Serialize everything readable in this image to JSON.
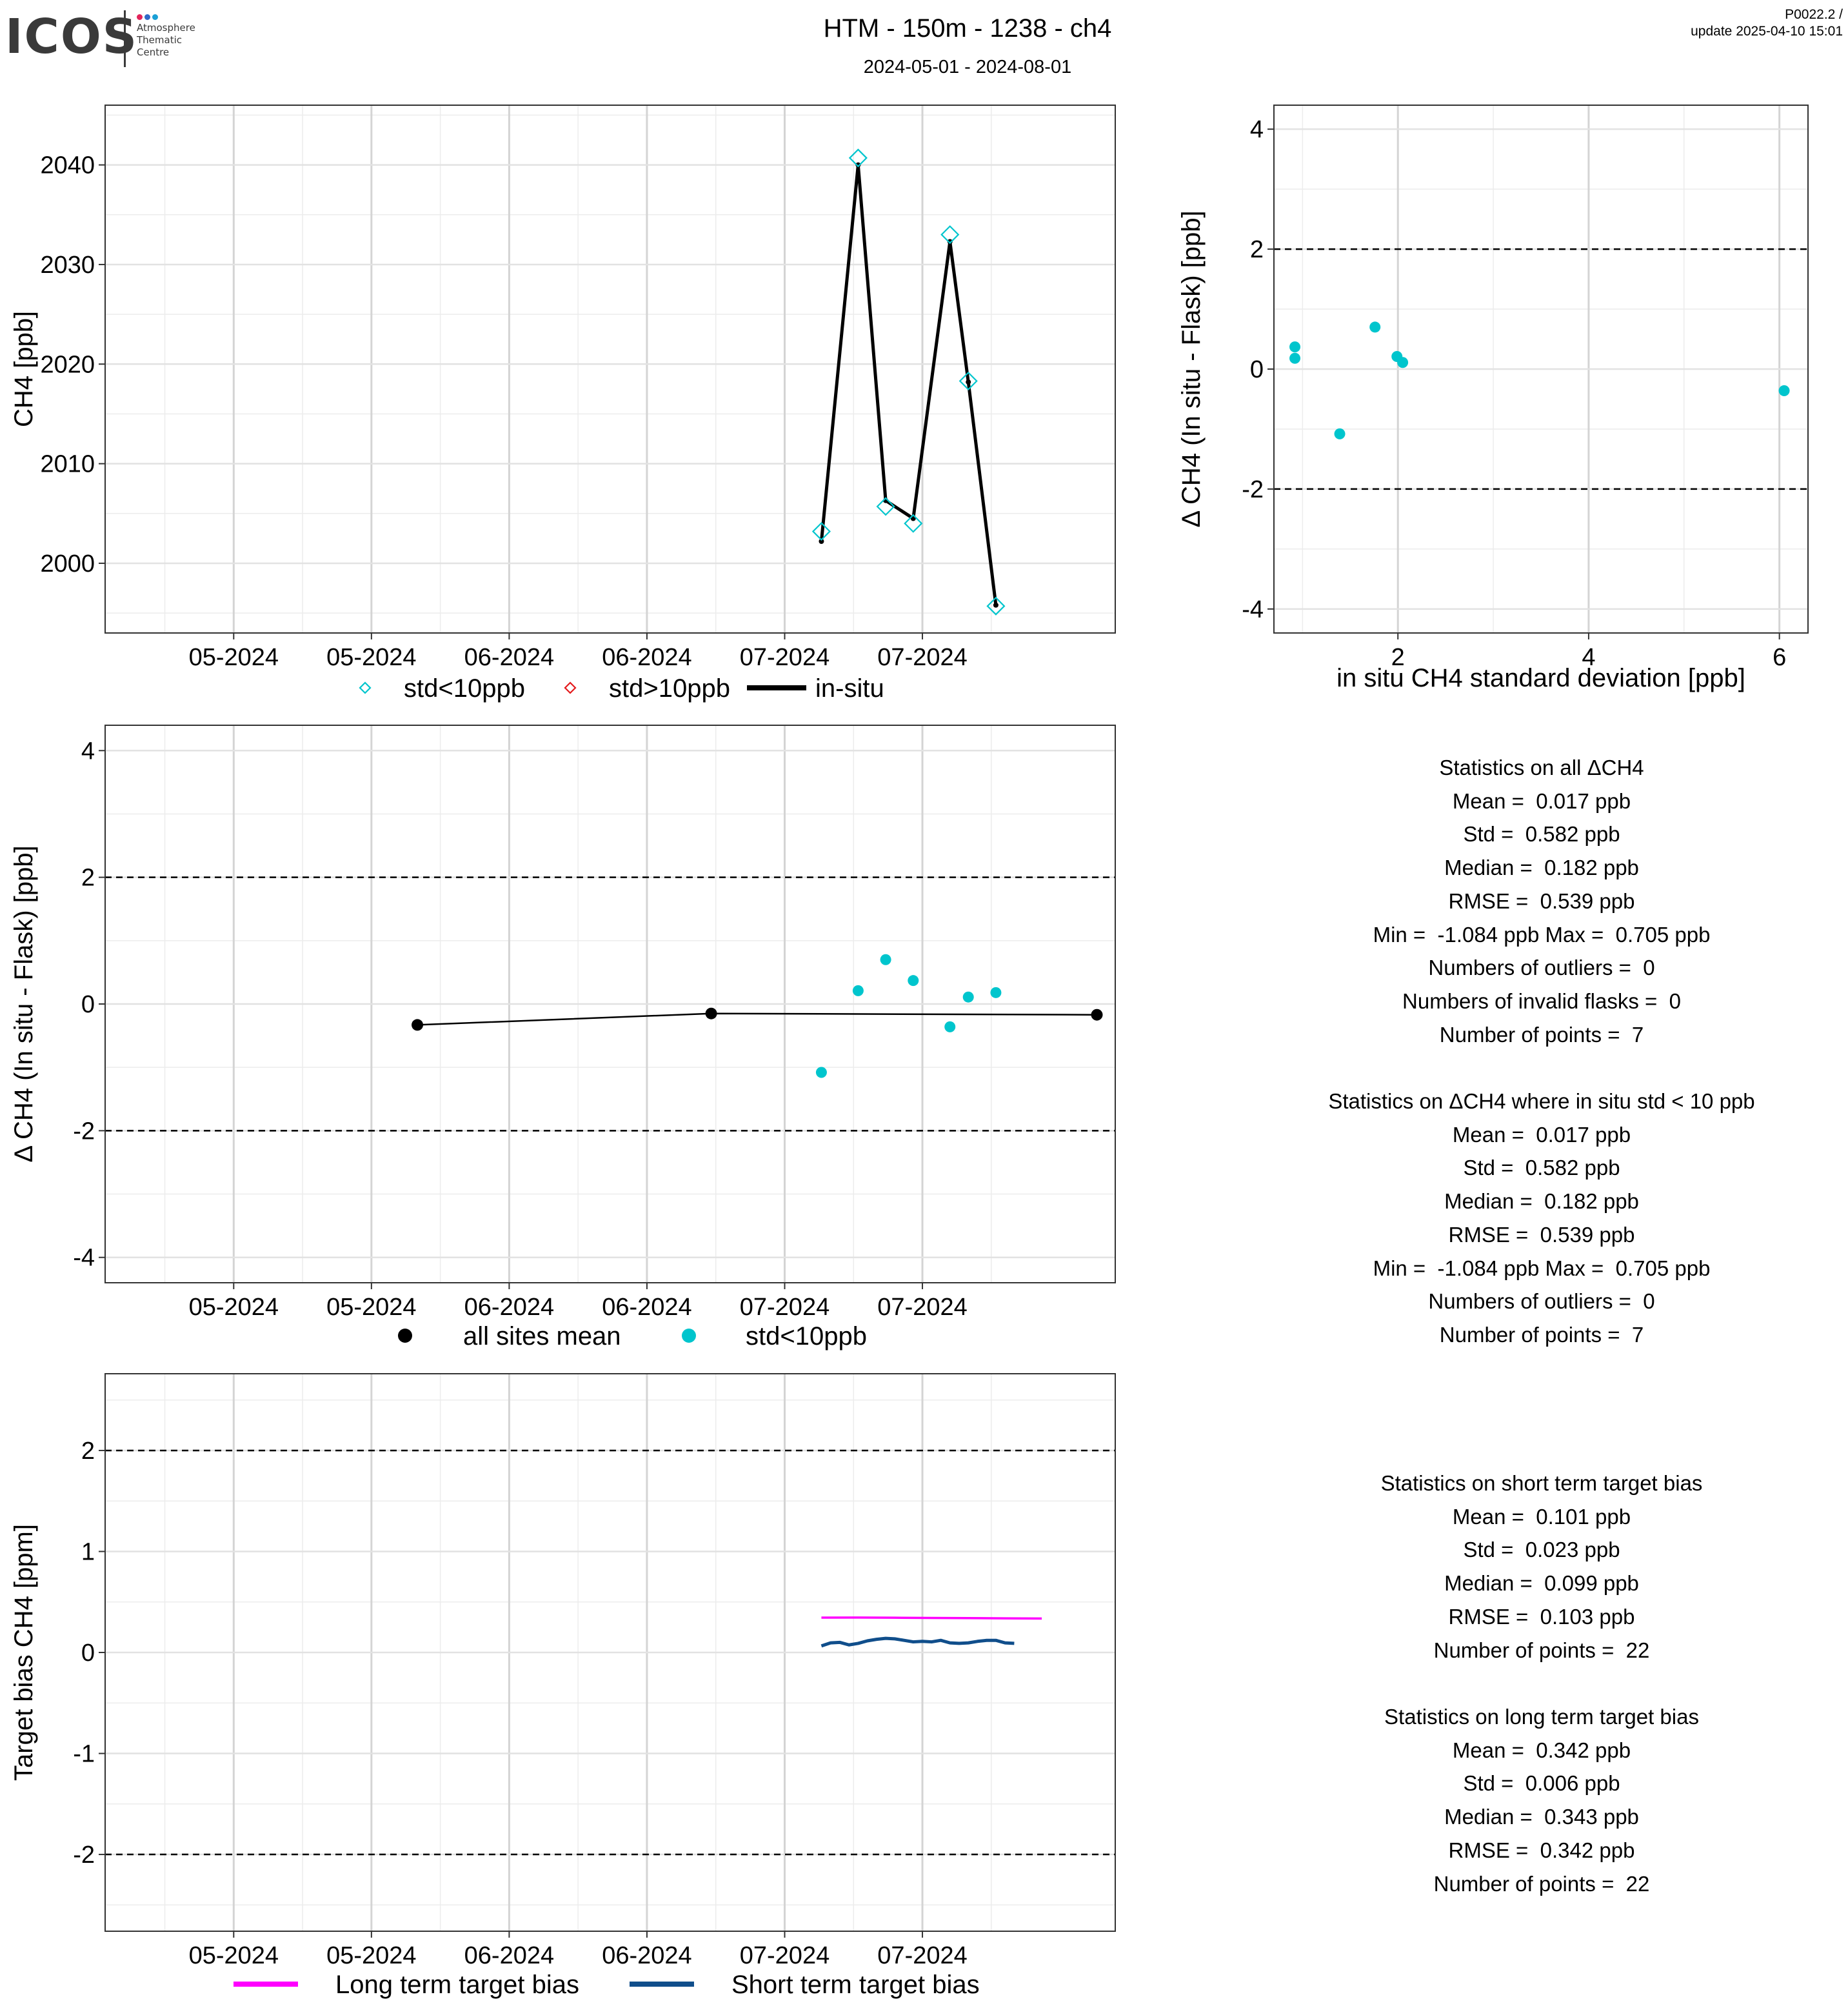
{
  "header": {
    "logo_word": "ICOS",
    "logo_sub": "Atmosphere\nThematic\nCentre",
    "logo_dot_colors": [
      "#e3245a",
      "#2f6ac7",
      "#1aa0d6"
    ],
    "title": "HTM - 150m - 1238 - ch4",
    "subtitle": "2024-05-01 - 2024-08-01",
    "version": "P0022.2 /",
    "update": "update  2025-04-10 15:01"
  },
  "chart_data": [
    {
      "id": "ts",
      "type": "line",
      "x_kind": "date",
      "xlim": [
        "2024-04-17",
        "2024-08-05"
      ],
      "x_ticks": [
        "2024-05-01",
        "2024-05-16",
        "2024-05-31",
        "2024-06-15",
        "2024-06-30",
        "2024-07-15"
      ],
      "x_tick_labels": [
        "05-2024",
        "05-2024",
        "06-2024",
        "06-2024",
        "07-2024",
        "07-2024"
      ],
      "ylabel": "CH4 [ppb]",
      "ylim": [
        1993,
        2046
      ],
      "y_ticks": [
        2000,
        2010,
        2020,
        2030,
        2040
      ],
      "grid": true,
      "legend_position": "bottom",
      "series": [
        {
          "name": "std<10ppb",
          "kind": "diamond-open",
          "color": "#00c5cd",
          "x": [
            "2024-07-04",
            "2024-07-08",
            "2024-07-11",
            "2024-07-14",
            "2024-07-18",
            "2024-07-20",
            "2024-07-23"
          ],
          "y": [
            2003.2,
            2040.7,
            2005.7,
            2004.0,
            2033.0,
            2018.3,
            1995.7
          ]
        },
        {
          "name": "std>10ppb",
          "kind": "diamond-open",
          "color": "#e41a1c",
          "x": [],
          "y": []
        },
        {
          "name": "in-situ",
          "kind": "line",
          "color": "#000000",
          "x": [
            "2024-07-04",
            "2024-07-08",
            "2024-07-11",
            "2024-07-14",
            "2024-07-18",
            "2024-07-20",
            "2024-07-23"
          ],
          "y": [
            2002.2,
            2040.0,
            2006.3,
            2004.5,
            2032.3,
            2018.2,
            1995.8
          ]
        }
      ]
    },
    {
      "id": "scatter",
      "type": "scatter",
      "xlabel": "in situ CH4 standard deviation [ppb]",
      "ylabel": "Δ CH4 (In situ - Flask) [ppb]",
      "xlim": [
        0.7,
        6.3
      ],
      "ylim": [
        -4.4,
        4.4
      ],
      "x_ticks": [
        2,
        4,
        6
      ],
      "y_ticks": [
        -4,
        -2,
        0,
        2,
        4
      ],
      "hlines": [
        -2,
        2
      ],
      "grid": true,
      "series": [
        {
          "name": "std<10ppb",
          "color": "#00c5cd",
          "x": [
            0.92,
            0.92,
            1.39,
            1.76,
            1.99,
            2.05,
            6.05
          ],
          "y": [
            0.37,
            0.18,
            -1.08,
            0.7,
            0.21,
            0.11,
            -0.36
          ]
        }
      ]
    },
    {
      "id": "diff",
      "type": "scatter",
      "x_kind": "date",
      "xlim": [
        "2024-04-17",
        "2024-08-05"
      ],
      "x_ticks": [
        "2024-05-01",
        "2024-05-16",
        "2024-05-31",
        "2024-06-15",
        "2024-06-30",
        "2024-07-15"
      ],
      "x_tick_labels": [
        "05-2024",
        "05-2024",
        "06-2024",
        "06-2024",
        "07-2024",
        "07-2024"
      ],
      "ylabel": "Δ CH4 (In situ - Flask) [ppb]",
      "ylim": [
        -4.4,
        4.4
      ],
      "y_ticks": [
        -4,
        -2,
        0,
        2,
        4
      ],
      "hlines": [
        -2,
        2
      ],
      "grid": true,
      "legend_position": "bottom",
      "series": [
        {
          "name": "all sites mean",
          "kind": "line-points",
          "color": "#000000",
          "x": [
            "2024-05-21",
            "2024-06-22",
            "2024-08-03"
          ],
          "y": [
            -0.33,
            -0.15,
            -0.17
          ]
        },
        {
          "name": "std<10ppb",
          "kind": "points",
          "color": "#00c5cd",
          "x": [
            "2024-07-04",
            "2024-07-08",
            "2024-07-11",
            "2024-07-14",
            "2024-07-18",
            "2024-07-20",
            "2024-07-23"
          ],
          "y": [
            -1.08,
            0.21,
            0.7,
            0.37,
            -0.36,
            0.11,
            0.18
          ]
        }
      ]
    },
    {
      "id": "bias",
      "type": "line",
      "x_kind": "date",
      "xlim": [
        "2024-04-17",
        "2024-08-05"
      ],
      "x_ticks": [
        "2024-05-01",
        "2024-05-16",
        "2024-05-31",
        "2024-06-15",
        "2024-06-30",
        "2024-07-15"
      ],
      "x_tick_labels": [
        "05-2024",
        "05-2024",
        "06-2024",
        "06-2024",
        "07-2024",
        "07-2024"
      ],
      "ylabel": "Target bias CH4 [ppm]",
      "ylim": [
        -2.76,
        2.76
      ],
      "y_ticks": [
        -2,
        -1,
        0,
        1,
        2
      ],
      "hlines": [
        -2,
        2
      ],
      "grid": true,
      "legend_position": "bottom",
      "series": [
        {
          "name": "Long term target bias",
          "color": "#ff00ff",
          "x": [
            "2024-07-04",
            "2024-07-08",
            "2024-07-12",
            "2024-07-16",
            "2024-07-20",
            "2024-07-24",
            "2024-07-28"
          ],
          "y": [
            0.345,
            0.346,
            0.344,
            0.342,
            0.34,
            0.338,
            0.336
          ]
        },
        {
          "name": "Short term target bias",
          "color": "#104e8b",
          "x": [
            "2024-07-04",
            "2024-07-05",
            "2024-07-06",
            "2024-07-07",
            "2024-07-08",
            "2024-07-09",
            "2024-07-10",
            "2024-07-11",
            "2024-07-12",
            "2024-07-13",
            "2024-07-14",
            "2024-07-15",
            "2024-07-16",
            "2024-07-17",
            "2024-07-18",
            "2024-07-19",
            "2024-07-20",
            "2024-07-21",
            "2024-07-22",
            "2024-07-23",
            "2024-07-24",
            "2024-07-25"
          ],
          "y": [
            0.065,
            0.095,
            0.1,
            0.075,
            0.09,
            0.115,
            0.13,
            0.14,
            0.135,
            0.12,
            0.105,
            0.11,
            0.105,
            0.12,
            0.095,
            0.09,
            0.095,
            0.11,
            0.12,
            0.12,
            0.095,
            0.09
          ]
        }
      ]
    }
  ],
  "stats_all": [
    "Statistics on all ΔCH4",
    "Mean =  0.017 ppb",
    "Std =  0.582 ppb",
    "Median =  0.182 ppb",
    "RMSE =  0.539 ppb",
    "Min =  -1.084 ppb Max =  0.705 ppb",
    "Numbers of outliers =  0",
    "Numbers of invalid flasks =  0",
    "Number of points =  7"
  ],
  "stats_std": [
    "Statistics on ΔCH4 where in situ std < 10 ppb",
    "Mean =  0.017 ppb",
    "Std =  0.582 ppb",
    "Median =  0.182 ppb",
    "RMSE =  0.539 ppb",
    "Min =  -1.084 ppb Max =  0.705 ppb",
    "Numbers of outliers =  0",
    "Number of points =  7"
  ],
  "stats_short": [
    "Statistics on short term target bias",
    "Mean =  0.101 ppb",
    "Std =  0.023 ppb",
    "Median =  0.099 ppb",
    "RMSE =  0.103 ppb",
    "Number of points =  22"
  ],
  "stats_long": [
    "Statistics on long term target bias",
    "Mean =  0.342 ppb",
    "Std =  0.006 ppb",
    "Median =  0.343 ppb",
    "RMSE =  0.342 ppb",
    "Number of points =  22"
  ]
}
